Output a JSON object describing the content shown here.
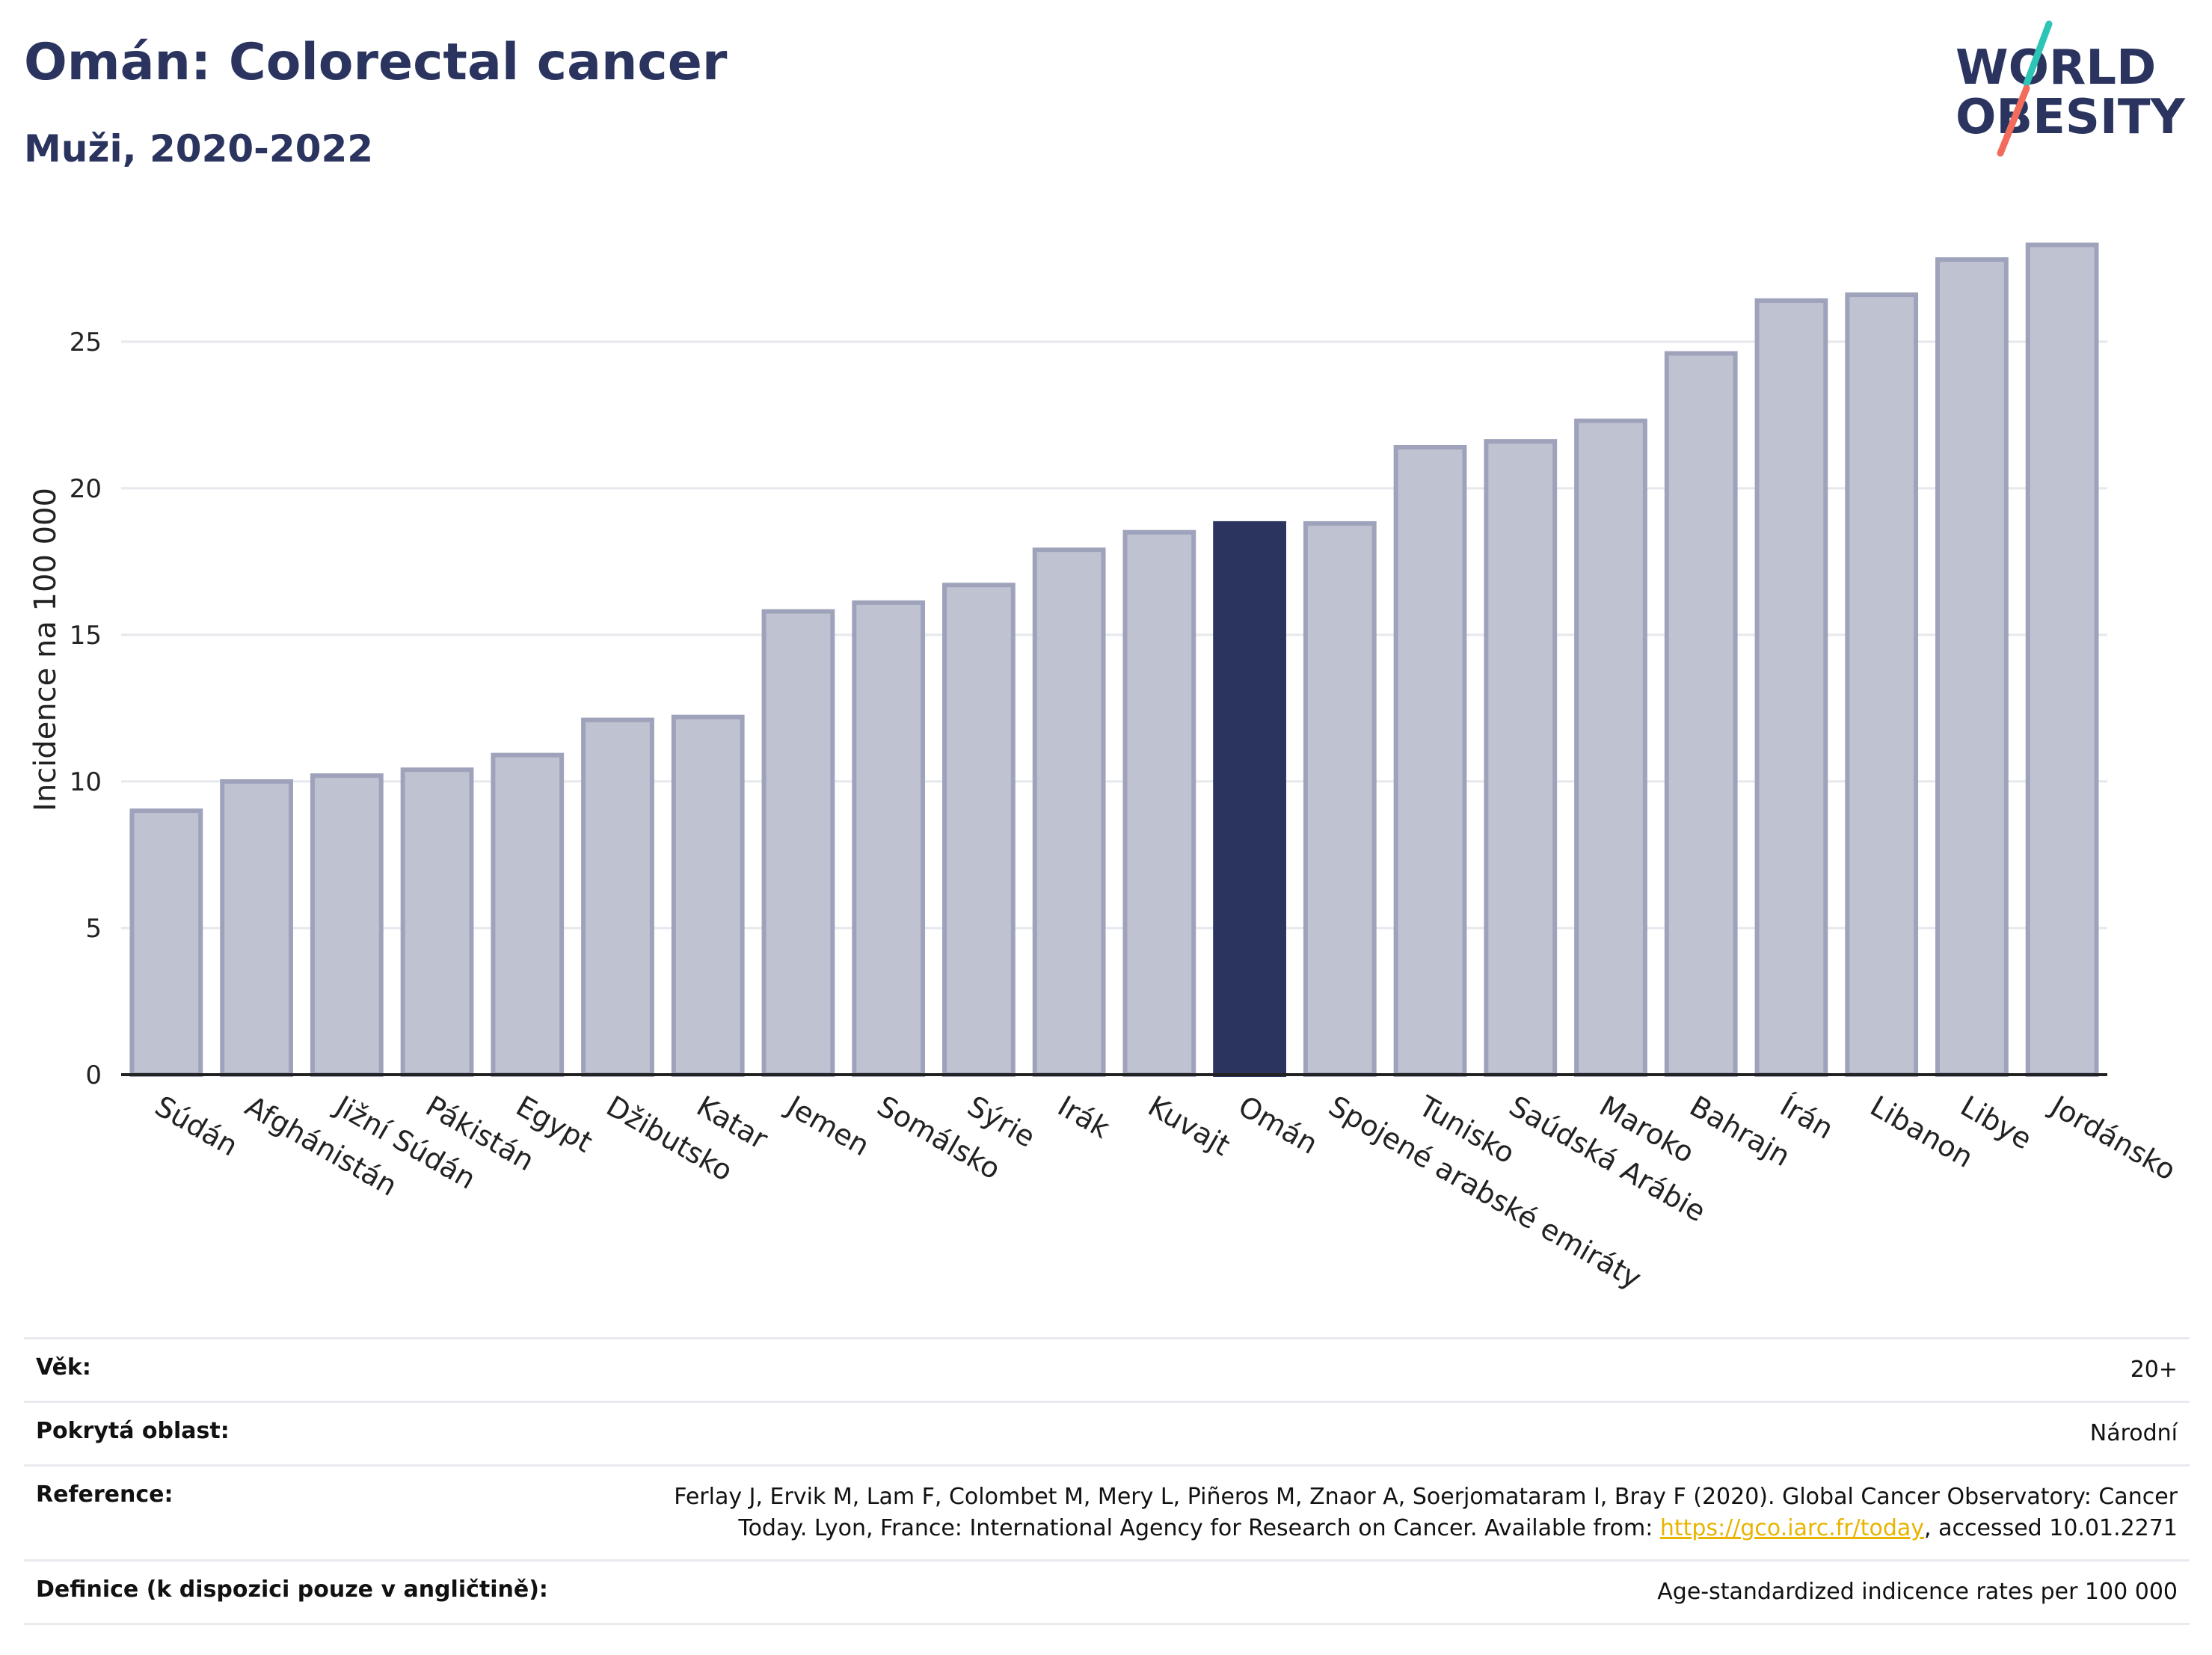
{
  "header": {
    "title": "Omán: Colorectal cancer",
    "subtitle": "Muži, 2020-2022"
  },
  "logo": {
    "line1": "WORLD",
    "line2": "OBESITY",
    "color_dark": "#2a345f",
    "color_teal": "#2ec4b6",
    "color_coral": "#f26b5b"
  },
  "chart_data": {
    "type": "bar",
    "title": "Omán: Colorectal cancer",
    "subtitle": "Muži, 2020-2022",
    "xlabel": "",
    "ylabel": "Incidence na 100 000",
    "ylim": [
      0,
      29
    ],
    "yticks": [
      0,
      5,
      10,
      15,
      20,
      25
    ],
    "grid": true,
    "categories": [
      "Súdán",
      "Afghánistán",
      "Jižní Súdán",
      "Pákistán",
      "Egypt",
      "Džibutsko",
      "Katar",
      "Jemen",
      "Somálsko",
      "Sýrie",
      "Irák",
      "Kuvajt",
      "Omán",
      "Spojené arabské emiráty",
      "Tunisko",
      "Saúdská Arábie",
      "Maroko",
      "Bahrajn",
      "Írán",
      "Libanon",
      "Libye",
      "Jordánsko"
    ],
    "values": [
      9.0,
      10.0,
      10.2,
      10.4,
      10.9,
      12.1,
      12.2,
      15.8,
      16.1,
      16.7,
      17.9,
      18.5,
      18.8,
      18.8,
      21.4,
      21.6,
      22.3,
      24.6,
      26.4,
      26.6,
      27.8,
      28.3
    ],
    "highlight": "Omán",
    "colors": {
      "bar": "#bfc2d0",
      "bar_border": "#9ea3bb",
      "highlight": "#2a345f",
      "grid": "#e6e8ee",
      "axis": "#222222"
    }
  },
  "info": {
    "rows": [
      {
        "key": "Věk:",
        "value": "20+"
      },
      {
        "key": "Pokrytá oblast:",
        "value": "Národní"
      },
      {
        "key": "Reference:",
        "value_pre": "Ferlay J, Ervik M, Lam F, Colombet M, Mery L, Piñeros M, Znaor A, Soerjomataram I, Bray F (2020). Global Cancer Observatory: Cancer Today. Lyon, France: International Agency for Research on Cancer. Available from: ",
        "link": "https://gco.iarc.fr/today",
        "value_post": ", accessed 10.01.2271"
      },
      {
        "key": "Definice (k dispozici pouze v angličtině):",
        "value": "Age-standardized indicence rates per 100 000"
      }
    ]
  }
}
